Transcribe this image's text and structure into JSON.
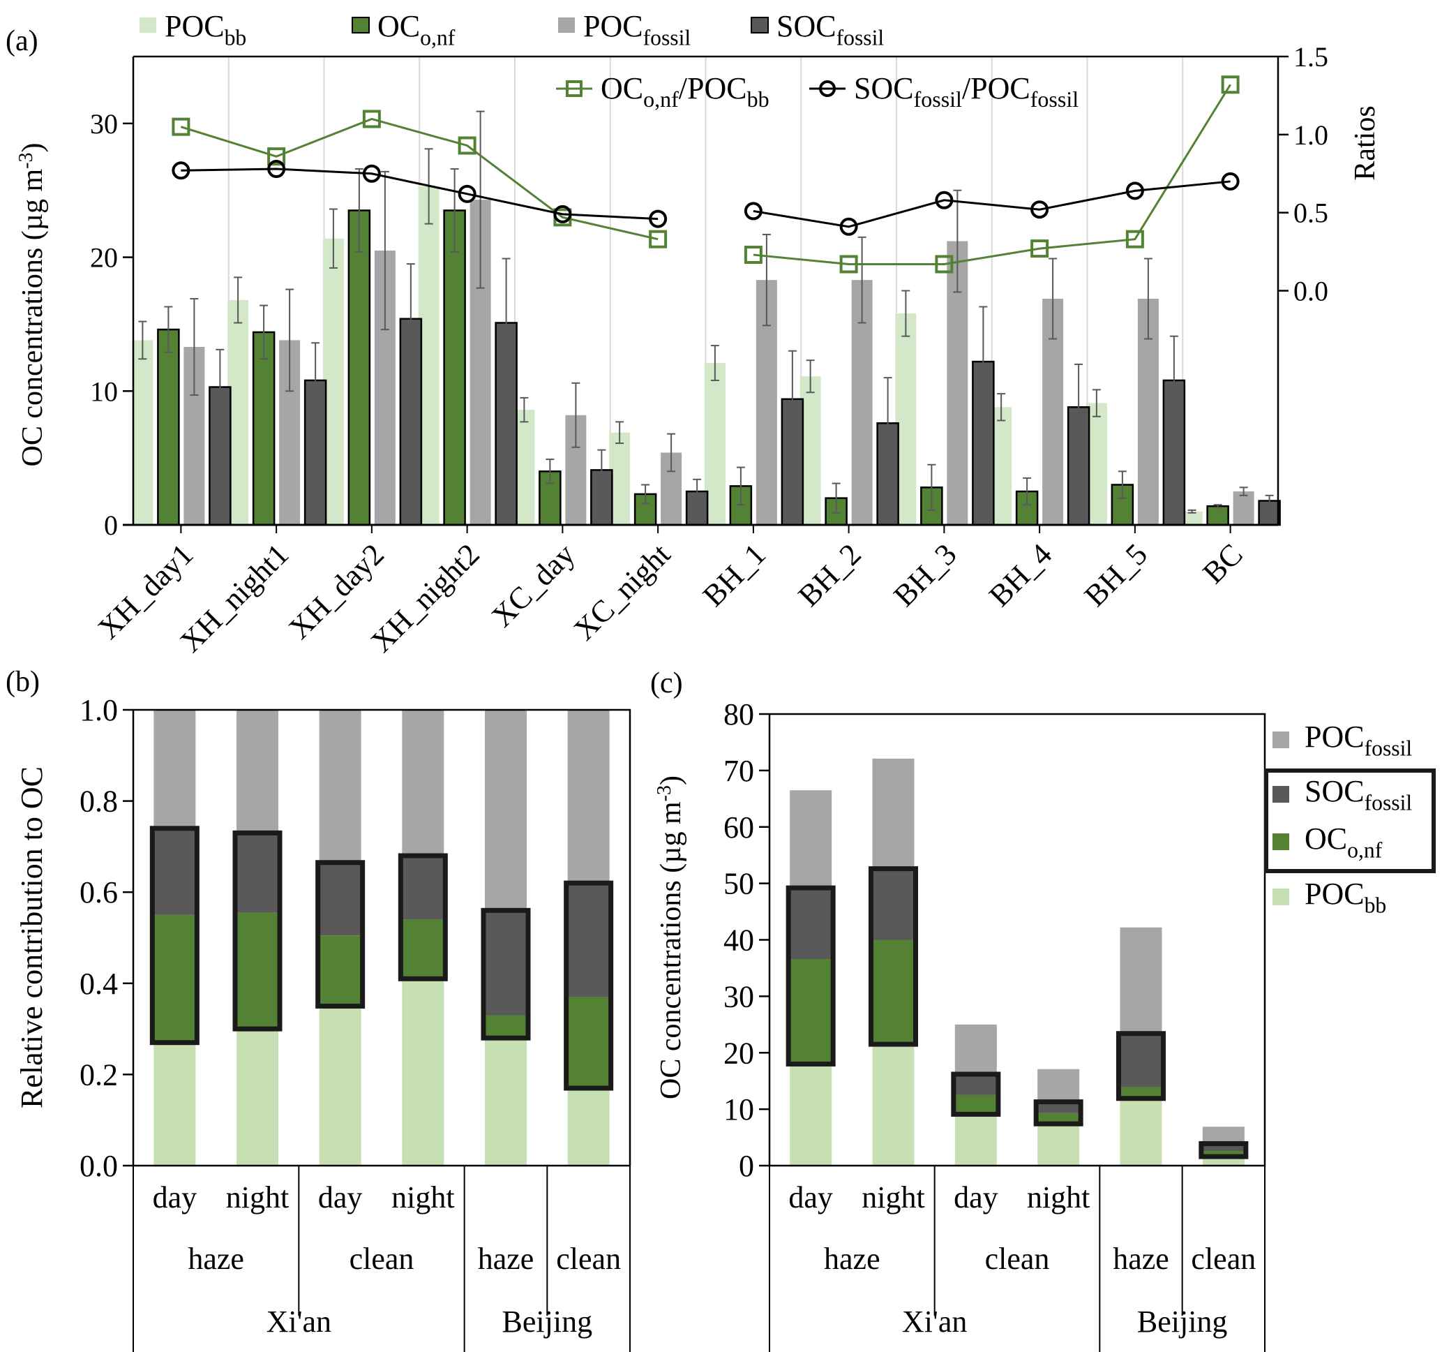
{
  "colors": {
    "poc_bb": "#d3e8c8",
    "poc_bb_stack": "#c6e0b4",
    "oc_onf": "#548235",
    "poc_fossil": "#a6a6a6",
    "soc_fossil": "#595959",
    "ratio_green": "#548235",
    "ratio_black": "#000000",
    "error_bar": "#595959",
    "grid": "#d9d9d9"
  },
  "chart_data": [
    {
      "panel": "(a)",
      "type": "bar",
      "xlabel": "",
      "ylabel": "OC concentrations (µg m⁻³)",
      "ylabel_parts": {
        "main": "OC concentrations (µg m",
        "sup": "-3",
        "end": ")"
      },
      "ylim": [
        0,
        35
      ],
      "yticks": [
        0,
        10,
        20,
        30
      ],
      "y2label": "Ratios",
      "y2lim": [
        -1.5,
        1.5
      ],
      "y2ticks": [
        0.0,
        0.5,
        1.0,
        1.5
      ],
      "y2tick_labels": [
        "0.0",
        "0.5",
        "1.0",
        "1.5"
      ],
      "grid": "vertical",
      "categories": [
        "XH_day1",
        "XH_night1",
        "XH_day2",
        "XH_night2",
        "XC_day",
        "XC_night",
        "BH_1",
        "BH_2",
        "BH_3",
        "BH_4",
        "BH_5",
        "BC"
      ],
      "legend_top": [
        {
          "key": "poc_bb",
          "main": "POC",
          "sub": "bb"
        },
        {
          "key": "oc_onf",
          "main": "OC",
          "sub": "o,nf"
        },
        {
          "key": "poc_fossil",
          "main": "POC",
          "sub": "fossil"
        },
        {
          "key": "soc_fossil",
          "main": "SOC",
          "sub": "fossil"
        }
      ],
      "legend_lines": [
        {
          "key": "ratio_green",
          "parts": [
            {
              "main": "OC",
              "sub": "o,nf"
            },
            {
              "main": "/POC",
              "sub": "bb"
            }
          ],
          "marker": "square"
        },
        {
          "key": "ratio_black",
          "parts": [
            {
              "main": "SOC",
              "sub": "fossil"
            },
            {
              "main": "/POC",
              "sub": "fossil"
            }
          ],
          "marker": "circle"
        }
      ],
      "series": [
        {
          "name": "POC_bb",
          "key": "poc_bb",
          "values": [
            13.8,
            16.8,
            21.4,
            25.3,
            8.6,
            6.9,
            12.1,
            11.1,
            15.8,
            8.8,
            9.1,
            1.0
          ],
          "errors": [
            1.4,
            1.7,
            2.2,
            2.8,
            0.9,
            0.8,
            1.3,
            1.2,
            1.7,
            1.0,
            1.0,
            0.1
          ]
        },
        {
          "name": "OC_o,nf",
          "key": "oc_onf",
          "values": [
            14.6,
            14.4,
            23.5,
            23.5,
            4.0,
            2.3,
            2.9,
            2.0,
            2.8,
            2.5,
            3.0,
            1.4
          ],
          "errors": [
            1.7,
            2.0,
            3.1,
            3.1,
            0.9,
            0.7,
            1.4,
            1.1,
            1.7,
            1.0,
            1.0,
            0.1
          ]
        },
        {
          "name": "POC_fossil",
          "key": "poc_fossil",
          "values": [
            13.3,
            13.8,
            20.5,
            24.3,
            8.2,
            5.4,
            18.3,
            18.3,
            21.2,
            16.9,
            16.9,
            2.5
          ],
          "errors": [
            3.6,
            3.8,
            5.9,
            6.6,
            2.4,
            1.4,
            3.4,
            3.2,
            3.8,
            3.0,
            3.0,
            0.3
          ]
        },
        {
          "name": "SOC_fossil",
          "key": "soc_fossil",
          "values": [
            10.3,
            10.8,
            15.4,
            15.1,
            4.1,
            2.5,
            9.4,
            7.6,
            12.2,
            8.8,
            10.8,
            1.8
          ],
          "errors": [
            2.8,
            2.8,
            4.1,
            4.8,
            1.5,
            0.9,
            3.6,
            3.4,
            4.1,
            3.2,
            3.3,
            0.4
          ]
        }
      ],
      "ratio_series": [
        {
          "name": "OC_o,nf/POC_bb",
          "key": "ratio_green",
          "marker": "square",
          "values": [
            1.05,
            0.86,
            1.1,
            0.93,
            0.47,
            0.33,
            0.23,
            0.17,
            0.17,
            0.27,
            0.33,
            1.32
          ]
        },
        {
          "name": "SOC_fossil/POC_fossil",
          "key": "ratio_black",
          "marker": "circle",
          "values": [
            0.77,
            0.78,
            0.75,
            0.62,
            0.49,
            0.46,
            0.51,
            0.41,
            0.58,
            0.52,
            0.64,
            0.7
          ]
        }
      ]
    },
    {
      "panel": "(b)",
      "type": "bar",
      "stacked": true,
      "ylabel": "Relative contribution to OC",
      "ylim": [
        0,
        1.0
      ],
      "yticks": [
        0.0,
        0.2,
        0.4,
        0.6,
        0.8,
        1.0
      ],
      "ytick_labels": [
        "0.0",
        "0.2",
        "0.4",
        "0.6",
        "0.8",
        "1.0"
      ],
      "categories": [
        "Xi'an haze day",
        "Xi'an haze night",
        "Xi'an clean day",
        "Xi'an clean night",
        "Beijing haze",
        "Beijing clean"
      ],
      "series": [
        {
          "name": "POC_bb",
          "key": "poc_bb_stack",
          "values": [
            0.27,
            0.3,
            0.35,
            0.41,
            0.28,
            0.17
          ]
        },
        {
          "name": "OC_o,nf",
          "key": "oc_onf",
          "values": [
            0.28,
            0.255,
            0.155,
            0.13,
            0.05,
            0.2
          ]
        },
        {
          "name": "SOC_fossil",
          "key": "soc_fossil",
          "values": [
            0.19,
            0.175,
            0.16,
            0.14,
            0.23,
            0.25
          ]
        },
        {
          "name": "POC_fossil",
          "key": "poc_fossil",
          "values": [
            0.26,
            0.27,
            0.335,
            0.32,
            0.44,
            0.38
          ]
        }
      ],
      "group_labels": {
        "level1": [
          "day",
          "night",
          "day",
          "night",
          "",
          ""
        ],
        "level2": [
          {
            "label": "haze",
            "span": 2
          },
          {
            "label": "clean",
            "span": 2
          },
          {
            "label": "haze",
            "span": 1
          },
          {
            "label": "clean",
            "span": 1
          }
        ],
        "level3": [
          {
            "label": "Xi'an",
            "span": 4
          },
          {
            "label": "Beijing",
            "span": 2
          }
        ]
      }
    },
    {
      "panel": "(c)",
      "type": "bar",
      "stacked": true,
      "ylabel": "OC concentrations (µg m⁻³)",
      "ylabel_parts": {
        "main": "OC concentrations (µg m",
        "sup": "-3",
        "end": ")"
      },
      "ylim": [
        0,
        80
      ],
      "yticks": [
        0,
        10,
        20,
        30,
        40,
        50,
        60,
        70,
        80
      ],
      "categories": [
        "Xi'an haze day",
        "Xi'an haze night",
        "Xi'an clean day",
        "Xi'an clean night",
        "Beijing haze",
        "Beijing clean"
      ],
      "series": [
        {
          "name": "POC_bb",
          "key": "poc_bb_stack",
          "values": [
            18.0,
            21.5,
            9.1,
            7.4,
            11.9,
            1.6
          ]
        },
        {
          "name": "OC_o,nf",
          "key": "oc_onf",
          "values": [
            18.6,
            18.5,
            3.4,
            1.9,
            2.0,
            1.0
          ]
        },
        {
          "name": "SOC_fossil",
          "key": "soc_fossil",
          "values": [
            12.6,
            12.6,
            3.7,
            2.0,
            9.5,
            1.3
          ]
        },
        {
          "name": "POC_fossil",
          "key": "poc_fossil",
          "values": [
            17.3,
            19.5,
            8.8,
            5.8,
            18.8,
            3.0
          ]
        }
      ],
      "legend": [
        {
          "key": "poc_fossil",
          "main": "POC",
          "sub": "fossil",
          "boxed": false
        },
        {
          "key": "soc_fossil",
          "main": "SOC",
          "sub": "fossil",
          "boxed": true
        },
        {
          "key": "oc_onf",
          "main": "OC",
          "sub": "o,nf",
          "boxed": true
        },
        {
          "key": "poc_bb_stack",
          "main": "POC",
          "sub": "bb",
          "boxed": false
        }
      ],
      "group_labels": {
        "level1": [
          "day",
          "night",
          "day",
          "night",
          "",
          ""
        ],
        "level2": [
          {
            "label": "haze",
            "span": 2
          },
          {
            "label": "clean",
            "span": 2
          },
          {
            "label": "haze",
            "span": 1
          },
          {
            "label": "clean",
            "span": 1
          }
        ],
        "level3": [
          {
            "label": "Xi'an",
            "span": 4
          },
          {
            "label": "Beijing",
            "span": 2
          }
        ]
      }
    }
  ]
}
